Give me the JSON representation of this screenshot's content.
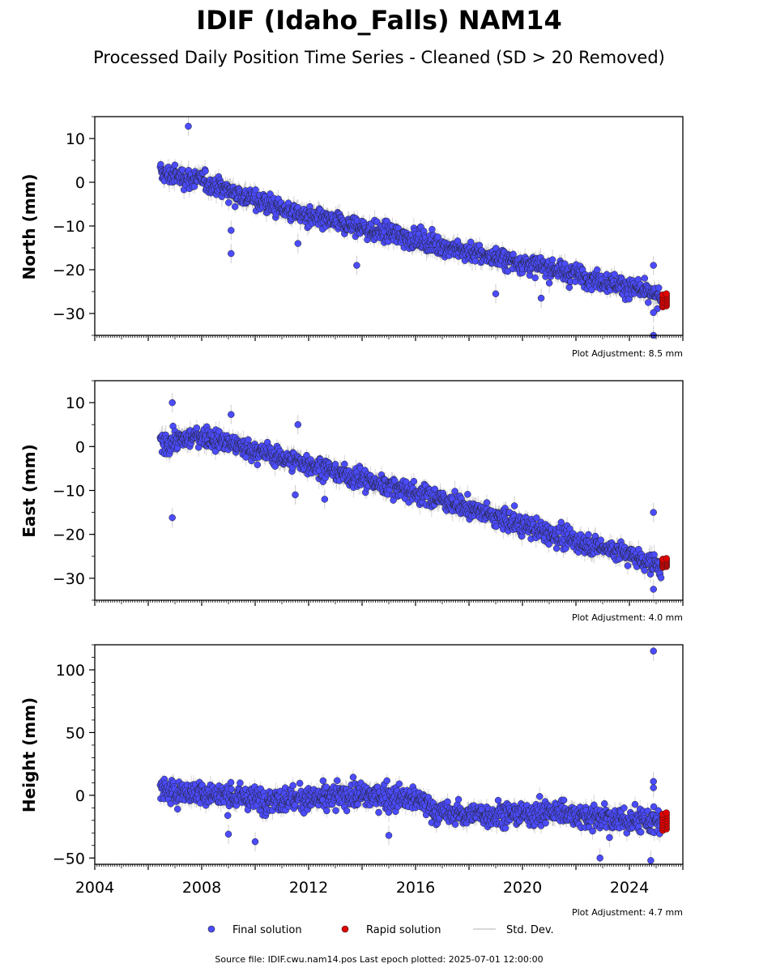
{
  "title": "IDIF (Idaho_Falls) NAM14",
  "subtitle": "Processed Daily Position Time Series - Cleaned (SD > 20 Removed)",
  "legend": {
    "final": "Final solution",
    "rapid": "Rapid solution",
    "std": "Std. Dev."
  },
  "source": "Source file: IDIF.cwu.nam14.pos  Last epoch plotted: 2025-07-01 12:00:00",
  "colors": {
    "final": "#4b4bff",
    "rapid": "#e00000",
    "std": "#bbbbbb"
  },
  "chart_data": [
    {
      "type": "scatter",
      "ylabel": "North (mm)",
      "xlim": [
        2004,
        2026
      ],
      "ylim": [
        -35,
        15
      ],
      "yticks": [
        10,
        0,
        -10,
        -20,
        -30
      ],
      "adjustment": "Plot Adjustment: 8.5 mm",
      "trend": [
        [
          2006.5,
          2
        ],
        [
          2008,
          0.5
        ],
        [
          2010,
          -4
        ],
        [
          2012,
          -8
        ],
        [
          2014,
          -10.5
        ],
        [
          2016,
          -13
        ],
        [
          2018,
          -16
        ],
        [
          2020,
          -18.5
        ],
        [
          2022,
          -21
        ],
        [
          2024,
          -24
        ],
        [
          2025.2,
          -26.5
        ]
      ],
      "outliers": [
        [
          2007.5,
          12.8
        ],
        [
          2009.1,
          -16.3
        ],
        [
          2009.1,
          -11
        ],
        [
          2013.8,
          -19
        ],
        [
          2019.0,
          -25.5
        ],
        [
          2020.7,
          -26.5
        ],
        [
          2024.9,
          -35
        ],
        [
          2024.9,
          -19
        ],
        [
          2024.9,
          -29.8
        ],
        [
          2011.6,
          -14
        ]
      ],
      "rapid": {
        "x_start": 2025.25,
        "x_end": 2025.5,
        "y_min": -28.5,
        "y_max": -25.5
      }
    },
    {
      "type": "scatter",
      "ylabel": "East (mm)",
      "xlim": [
        2004,
        2026
      ],
      "ylim": [
        -35,
        15
      ],
      "yticks": [
        10,
        0,
        -10,
        -20,
        -30
      ],
      "adjustment": "Plot Adjustment: 4.0 mm",
      "trend": [
        [
          2006.5,
          0.5
        ],
        [
          2008,
          2.5
        ],
        [
          2010,
          -1
        ],
        [
          2012,
          -4
        ],
        [
          2014,
          -7.5
        ],
        [
          2016,
          -10.5
        ],
        [
          2018,
          -14
        ],
        [
          2020,
          -18
        ],
        [
          2022,
          -21.5
        ],
        [
          2024,
          -24.5
        ],
        [
          2025.2,
          -27.5
        ]
      ],
      "outliers": [
        [
          2006.9,
          -16.2
        ],
        [
          2006.9,
          10
        ],
        [
          2009.1,
          7.3
        ],
        [
          2011.6,
          5
        ],
        [
          2011.5,
          -11
        ],
        [
          2012.6,
          -12
        ],
        [
          2024.9,
          -15
        ],
        [
          2024.9,
          -32.5
        ],
        [
          2019.7,
          -13.5
        ]
      ],
      "rapid": {
        "x_start": 2025.25,
        "x_end": 2025.5,
        "y_min": -27.5,
        "y_max": -25.5
      }
    },
    {
      "type": "scatter",
      "ylabel": "Height (mm)",
      "xlim": [
        2004,
        2026
      ],
      "ylim": [
        -55,
        120
      ],
      "yticks": [
        100,
        50,
        0,
        -50
      ],
      "xticks": [
        2004,
        2008,
        2012,
        2016,
        2020,
        2024
      ],
      "adjustment": "Plot Adjustment: 4.7 mm",
      "trend": [
        [
          2006.5,
          3
        ],
        [
          2008,
          2
        ],
        [
          2010,
          -3
        ],
        [
          2012,
          -3
        ],
        [
          2014,
          0
        ],
        [
          2016,
          -3
        ],
        [
          2017,
          -15
        ],
        [
          2018,
          -15
        ],
        [
          2020,
          -15
        ],
        [
          2021.5,
          -13
        ],
        [
          2022.7,
          -18
        ],
        [
          2024,
          -20
        ],
        [
          2025.2,
          -22
        ]
      ],
      "outliers": [
        [
          2024.9,
          115
        ],
        [
          2024.9,
          11
        ],
        [
          2024.9,
          6
        ],
        [
          2024.8,
          -52
        ],
        [
          2022.9,
          -50
        ],
        [
          2010.0,
          -37
        ],
        [
          2015.0,
          -32
        ],
        [
          2009.0,
          -31
        ]
      ],
      "rapid": {
        "x_start": 2025.25,
        "x_end": 2025.5,
        "y_min": -28,
        "y_max": -14
      }
    }
  ]
}
